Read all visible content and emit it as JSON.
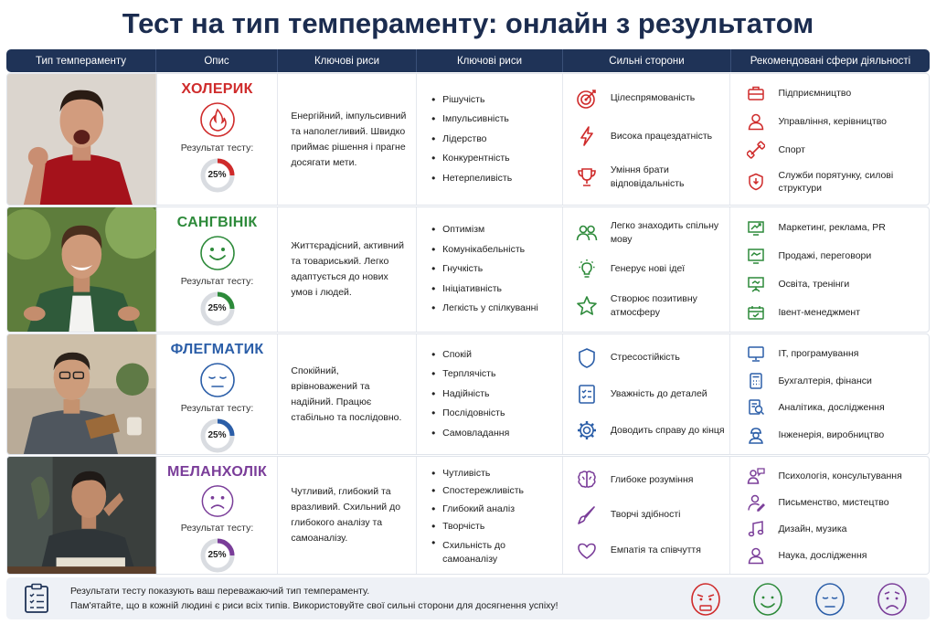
{
  "title": "Тест на тип темпераменту: онлайн з результатом",
  "columns": [
    "Тип темпераменту",
    "Опис",
    "Ключові риси",
    "Ключові риси",
    "Сильні сторони",
    "Рекомендовані сфери діяльності"
  ],
  "result_label": "Результат тесту:",
  "rows": [
    {
      "name": "ХОЛЕРИК",
      "color": "#cf2b2b",
      "icon": "flame-icon",
      "result": "25%",
      "description": "Енергійний, імпульсивний та наполегливий. Швидко приймає рішення і прагне досягати мети.",
      "traits": [
        "Рішучість",
        "Імпульсивність",
        "Лідерство",
        "Конкурентність",
        "Нетерпеливість"
      ],
      "strengths": [
        {
          "icon": "target-icon",
          "text": "Цілеспрямованість"
        },
        {
          "icon": "lightning-icon",
          "text": "Висока працездатність"
        },
        {
          "icon": "trophy-icon",
          "text": "Уміння брати відповідальність"
        }
      ],
      "spheres": [
        {
          "icon": "briefcase-icon",
          "text": "Підприємництво"
        },
        {
          "icon": "person-icon",
          "text": "Управління, керівництво"
        },
        {
          "icon": "dumbbell-icon",
          "text": "Спорт"
        },
        {
          "icon": "shield-icon",
          "text": "Служби порятунку, силові структури"
        }
      ]
    },
    {
      "name": "САНГВІНІК",
      "color": "#2d8a3a",
      "icon": "smile-icon",
      "result": "25%",
      "description": "Життєрадісний, активний та товариський. Легко адаптується до нових умов і людей.",
      "traits": [
        "Оптимізм",
        "Комунікабельність",
        "Гнучкість",
        "Ініціативність",
        "Легкість у спілкуванні"
      ],
      "strengths": [
        {
          "icon": "people-icon",
          "text": "Легко знаходить спільну мову"
        },
        {
          "icon": "lightbulb-icon",
          "text": "Генерує нові ідеї"
        },
        {
          "icon": "star-icon",
          "text": "Створює позитивну атмосферу"
        }
      ],
      "spheres": [
        {
          "icon": "chart-up-icon",
          "text": "Маркетинг, реклама, PR"
        },
        {
          "icon": "handshake-icon",
          "text": "Продажі, переговори"
        },
        {
          "icon": "presentation-icon",
          "text": "Освіта, тренінги"
        },
        {
          "icon": "event-icon",
          "text": "Івент-менеджмент"
        }
      ]
    },
    {
      "name": "ФЛЕГМАТИК",
      "color": "#2b5ea8",
      "icon": "calm-face-icon",
      "result": "25%",
      "description": "Спокійний, врівноважений та надійний. Працює стабільно та послідовно.",
      "traits": [
        "Спокій",
        "Терплячість",
        "Надійність",
        "Послідовність",
        "Самовладання"
      ],
      "strengths": [
        {
          "icon": "shield-icon",
          "text": "Стресостійкість"
        },
        {
          "icon": "checklist-icon",
          "text": "Уважність до деталей"
        },
        {
          "icon": "gear-icon",
          "text": "Доводить справу до кінця"
        }
      ],
      "spheres": [
        {
          "icon": "monitor-icon",
          "text": "ІТ, програмування"
        },
        {
          "icon": "calculator-icon",
          "text": "Бухгалтерія, фінанси"
        },
        {
          "icon": "analytics-icon",
          "text": "Аналітика, дослідження"
        },
        {
          "icon": "engineer-icon",
          "text": "Інженерія, виробництво"
        }
      ]
    },
    {
      "name": "МЕЛАНХОЛІК",
      "color": "#7a3d99",
      "icon": "sad-face-icon",
      "result": "25%",
      "description": "Чутливий, глибокий та вразливий. Схильний до глибокого аналізу та самоаналізу.",
      "traits": [
        "Чутливість",
        "Спостережливість",
        "Глибокий аналіз",
        "Творчість",
        "Схильність до самоаналізу"
      ],
      "strengths": [
        {
          "icon": "brain-icon",
          "text": "Глибоке розуміння"
        },
        {
          "icon": "brush-icon",
          "text": "Творчі здібності"
        },
        {
          "icon": "heart-icon",
          "text": "Емпатія та співчуття"
        }
      ],
      "spheres": [
        {
          "icon": "counseling-icon",
          "text": "Психологія, консультування"
        },
        {
          "icon": "writer-icon",
          "text": "Письменство, мистецтво"
        },
        {
          "icon": "music-icon",
          "text": "Дизайн, музика"
        },
        {
          "icon": "scientist-icon",
          "text": "Наука, дослідження"
        }
      ]
    }
  ],
  "footer": {
    "icon": "clipboard-icon",
    "line1": "Результати тесту показують ваш переважаючий тип темпераменту.",
    "line2": "Пам'ятайте, що в кожній людині є риси всіх типів. Використовуйте свої сильні сторони для досягнення успіху!"
  }
}
